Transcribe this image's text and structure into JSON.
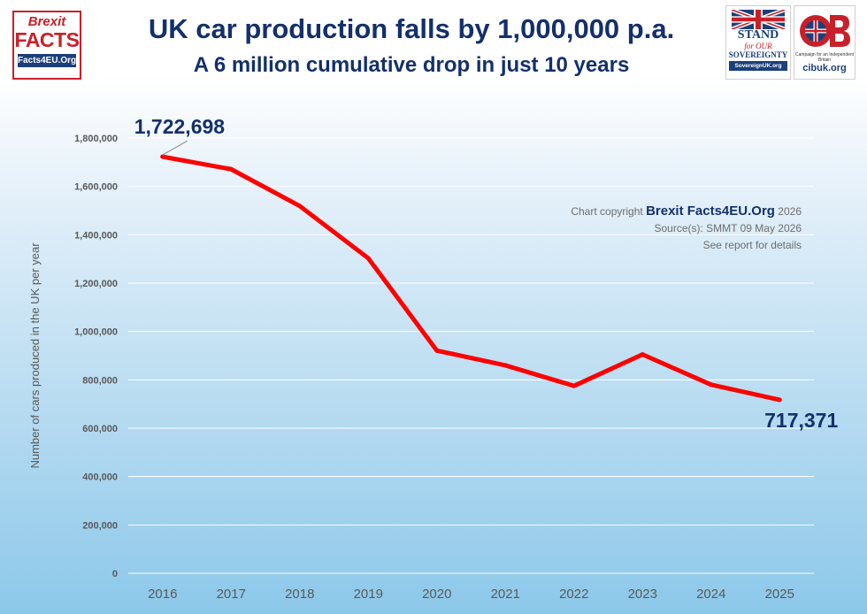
{
  "header": {
    "title": "UK car production falls by 1,000,000 p.a.",
    "subtitle": "A 6 million cumulative drop in just 10 years"
  },
  "logos": {
    "left": {
      "line1": "Brexit",
      "line2": "FACTS",
      "line3": "Facts4EU.Org"
    },
    "sovereignty": {
      "line1": "STAND",
      "line2": "for OUR",
      "line3": "SOVEREIGNTY",
      "line4": "SovereignUK.org"
    },
    "cib": {
      "tagline": "Campaign for an Independent Britain",
      "url": "cibuk.org"
    }
  },
  "credits": {
    "copyright_prefix": "Chart copyright",
    "copyright_brand": "Brexit Facts4EU.Org",
    "copyright_year": "2026",
    "source": "Source(s): SMMT  09 May 2026",
    "note": "See report for details"
  },
  "colors": {
    "title": "#14306b",
    "line": "#ff0000",
    "axis_text": "#595959",
    "grid": "#ffffff"
  },
  "chart_data": {
    "type": "line",
    "title": "UK car production falls by 1,000,000 p.a.",
    "subtitle": "A 6 million cumulative drop in just 10 years",
    "xlabel": "",
    "ylabel": "Number of cars produced in the UK per year",
    "categories": [
      "2016",
      "2017",
      "2018",
      "2019",
      "2020",
      "2021",
      "2022",
      "2023",
      "2024",
      "2025"
    ],
    "series": [
      {
        "values": [
          1722698,
          1671000,
          1519000,
          1303000,
          921000,
          860000,
          775000,
          905000,
          780000,
          717371
        ]
      }
    ],
    "ylim": [
      0,
      1800000
    ],
    "yticks": [
      0,
      200000,
      400000,
      600000,
      800000,
      1000000,
      1200000,
      1400000,
      1600000,
      1800000
    ],
    "ytick_labels": [
      "0",
      "200,000",
      "400,000",
      "600,000",
      "800,000",
      "1,000,000",
      "1,200,000",
      "1,400,000",
      "1,600,000",
      "1,800,000"
    ],
    "grid": true,
    "legend": "none",
    "annotations": [
      {
        "text": "1,722,698",
        "category": "2016",
        "value": 1722698
      },
      {
        "text": "717,371",
        "category": "2025",
        "value": 717371
      }
    ]
  }
}
